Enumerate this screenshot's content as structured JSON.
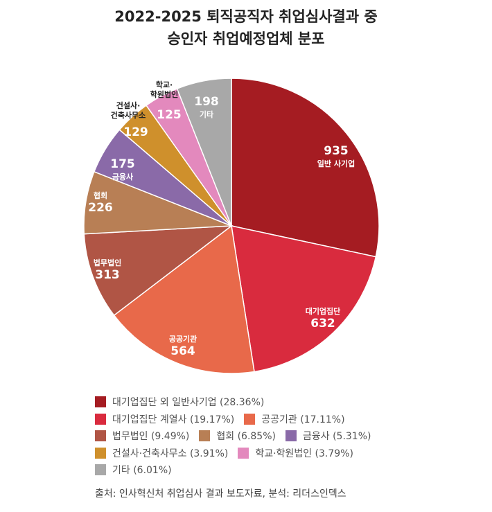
{
  "chart_data": {
    "type": "pie",
    "title": [
      "2022-2025 퇴직공직자 취업심사결과 중",
      "승인자 취업예정업체 분포"
    ],
    "start": "12 o'clock, clockwise",
    "slices": [
      {
        "label": "일반 사기업",
        "legend": "대기업집단 외 일반사기업 (28.36%)",
        "value": 935,
        "color": "#a51c22"
      },
      {
        "label": "대기업집단",
        "legend": "대기업집단 계열사 (19.17%)",
        "value": 632,
        "color": "#d92b3e"
      },
      {
        "label": "공공기관",
        "legend": "공공기관 (17.11%)",
        "value": 564,
        "color": "#e8694a"
      },
      {
        "label": "법무법인",
        "legend": "법무법인 (9.49%)",
        "value": 313,
        "color": "#b05545"
      },
      {
        "label": "협회",
        "legend": "협회 (6.85%)",
        "value": 226,
        "color": "#b87f55"
      },
      {
        "label": "금융사",
        "legend": "금융사 (5.31%)",
        "value": 175,
        "color": "#8a6aa8"
      },
      {
        "label": "건설사·건축사무소",
        "label_lines": [
          "건설사·",
          "건축사무소"
        ],
        "legend": "건설사·건축사무소 (3.91%)",
        "value": 129,
        "color": "#cf902c"
      },
      {
        "label": "학교·학원법인",
        "label_lines": [
          "학교·",
          "학원법인"
        ],
        "legend": "학교·학원법인 (3.79%)",
        "value": 125,
        "color": "#e389bd"
      },
      {
        "label": "기타",
        "legend": "기타 (6.01%)",
        "value": 198,
        "color": "#a8a8a8"
      }
    ],
    "legend_position": "bottom"
  },
  "source": "출처: 인사혁신처 취업심사 결과 보도자료, 분석: 리더스인덱스"
}
